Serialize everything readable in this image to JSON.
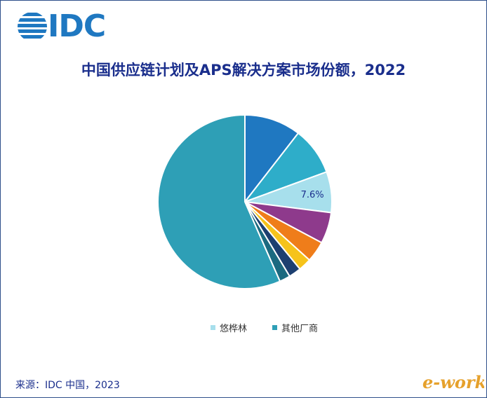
{
  "logo": {
    "text": "IDC"
  },
  "chart_data": {
    "type": "pie",
    "title": "中国供应链计划及APS解决方案市场份额，2022",
    "slices": [
      {
        "label": "",
        "value": 10.5,
        "color": "#1f78c1"
      },
      {
        "label": "",
        "value": 8.9,
        "color": "#2eadc9"
      },
      {
        "label": "悠桦林",
        "value": 7.6,
        "color": "#a7dfec",
        "data_label": "7.6%"
      },
      {
        "label": "",
        "value": 5.8,
        "color": "#8e3a8c"
      },
      {
        "label": "",
        "value": 3.9,
        "color": "#ef7d1a"
      },
      {
        "label": "",
        "value": 2.4,
        "color": "#f6c31b"
      },
      {
        "label": "",
        "value": 2.3,
        "color": "#1d3f70"
      },
      {
        "label": "",
        "value": 2.0,
        "color": "#1c6a80"
      },
      {
        "label": "其他厂商",
        "value": 56.6,
        "color": "#2e9fb6"
      }
    ],
    "legend": [
      {
        "label": "悠桦林",
        "color": "#a7dfec"
      },
      {
        "label": "其他厂商",
        "color": "#2e9fb6"
      }
    ],
    "legend_position": "bottom"
  },
  "source": "来源：IDC 中国，2023",
  "watermark": "e-works"
}
